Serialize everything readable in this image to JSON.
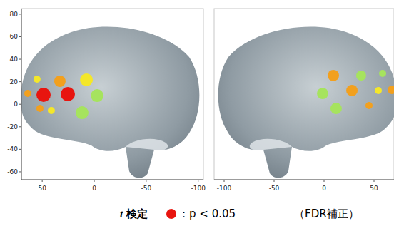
{
  "chart_data": [
    {
      "type": "scatter",
      "xlim": [
        70,
        -105
      ],
      "ylim": [
        -67,
        85
      ],
      "xticks": [
        50,
        0,
        -50,
        -100
      ],
      "yticks": [
        80,
        60,
        40,
        20,
        0,
        -20,
        -40,
        -60
      ],
      "grid": false,
      "tick_labels": true,
      "series": [
        {
          "color": "#e8150f",
          "x": [
            48.7,
            25.4
          ],
          "values": [
            8.4,
            9
          ],
          "sizes": [
            10,
            10
          ]
        },
        {
          "color": "#f2a01e",
          "x": [
            33,
            63.8,
            52.2
          ],
          "values": [
            20.4,
            9.6,
            -3.7
          ],
          "sizes": [
            8,
            5,
            5
          ]
        },
        {
          "color": "#f4e72a",
          "x": [
            7.5,
            55,
            41.2
          ],
          "values": [
            21.7,
            22.3,
            -5.6
          ],
          "sizes": [
            9,
            5,
            5
          ]
        },
        {
          "color": "#a6e35e",
          "x": [
            -2.8,
            11.7
          ],
          "values": [
            7.7,
            -7.5
          ],
          "sizes": [
            9,
            9
          ]
        }
      ]
    },
    {
      "type": "scatter",
      "xlim": [
        -110,
        70
      ],
      "ylim": [
        -67,
        85
      ],
      "xticks": [
        -100,
        -50,
        0,
        50
      ],
      "yticks": [
        80,
        60,
        40,
        20,
        0,
        -20,
        -40,
        -60
      ],
      "grid": false,
      "tick_labels": "x",
      "series": [
        {
          "color": "#f2a01e",
          "x": [
            9.3,
            27.9,
            45,
            67.9
          ],
          "values": [
            25.5,
            12.2,
            -1.1,
            12.8
          ],
          "sizes": [
            8,
            8,
            5,
            6
          ]
        },
        {
          "color": "#a6e35e",
          "x": [
            -1.4,
            37.1,
            12.1,
            58.6
          ],
          "values": [
            9.6,
            25.5,
            -3.7,
            27.4
          ],
          "sizes": [
            8,
            7,
            8,
            5
          ]
        },
        {
          "color": "#f4e72a",
          "x": [
            54.3
          ],
          "values": [
            12.2
          ],
          "sizes": [
            5
          ]
        }
      ]
    }
  ],
  "caption": {
    "label_italic": "t",
    "label": " 検定",
    "marker_color": "#e8150f",
    "text": "：p < 0.05",
    "note": "（FDR補正）"
  }
}
